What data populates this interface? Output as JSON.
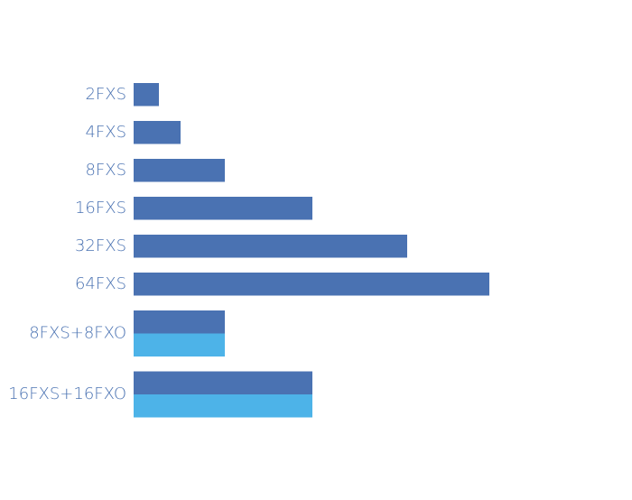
{
  "chart_data": {
    "type": "bar",
    "orientation": "horizontal",
    "categories": [
      "2FXS",
      "4FXS",
      "8FXS",
      "16FXS",
      "32FXS",
      "64FXS",
      "8FXS+8FXO",
      "16FXS+16FXO"
    ],
    "series": [
      {
        "color": "#4a72b2",
        "values": [
          28,
          52,
          101,
          198,
          303,
          394,
          101,
          198
        ]
      },
      {
        "color": "#4db3e8",
        "values": [
          null,
          null,
          null,
          null,
          null,
          null,
          101,
          198
        ]
      }
    ],
    "xlim": [
      0,
      550
    ]
  }
}
